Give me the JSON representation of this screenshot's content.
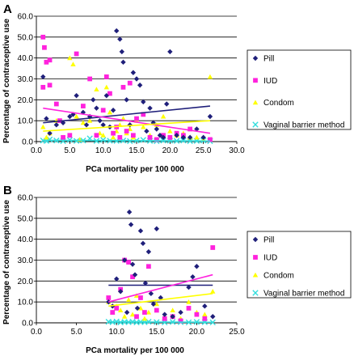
{
  "chart_data": [
    {
      "type": "scatter",
      "panel_label": "A",
      "xlabel": "PCa mortality per 100 000",
      "ylabel": "Percentage of contraceptive use",
      "xlim": [
        0,
        30
      ],
      "ylim": [
        0,
        60
      ],
      "xticks": [
        "0.0",
        "5.0",
        "10.0",
        "15.0",
        "20.0",
        "25.0",
        "30.0"
      ],
      "yticks": [
        "0.0",
        "10.0",
        "20.0",
        "30.0",
        "40.0",
        "50.0",
        "60.0"
      ],
      "grid": "horizontal",
      "legend_position": "right",
      "series": [
        {
          "name": "Pill",
          "color": "#1f1f7a",
          "marker": "diamond",
          "points": [
            [
              1,
              31
            ],
            [
              1.5,
              11
            ],
            [
              2,
              4
            ],
            [
              3,
              8
            ],
            [
              4,
              9
            ],
            [
              5,
              12
            ],
            [
              5.5,
              13
            ],
            [
              6,
              22
            ],
            [
              7,
              14
            ],
            [
              7.5,
              8
            ],
            [
              8,
              12
            ],
            [
              8.5,
              20
            ],
            [
              9,
              16
            ],
            [
              9.5,
              10
            ],
            [
              10,
              8
            ],
            [
              10.5,
              22
            ],
            [
              11,
              7
            ],
            [
              11.5,
              15
            ],
            [
              12,
              53
            ],
            [
              12.5,
              49
            ],
            [
              12.8,
              43
            ],
            [
              13,
              38
            ],
            [
              13.5,
              20
            ],
            [
              14,
              8
            ],
            [
              14.5,
              33
            ],
            [
              15,
              30
            ],
            [
              15.5,
              27
            ],
            [
              16,
              19
            ],
            [
              16.5,
              5
            ],
            [
              17,
              16
            ],
            [
              17.5,
              9
            ],
            [
              18,
              6
            ],
            [
              18.5,
              3
            ],
            [
              19,
              2
            ],
            [
              19.5,
              18
            ],
            [
              20,
              43
            ],
            [
              21,
              3
            ],
            [
              22,
              2
            ],
            [
              23,
              2
            ],
            [
              24,
              6
            ],
            [
              25,
              2
            ],
            [
              26,
              12
            ]
          ],
          "trend": [
            [
              1,
              9
            ],
            [
              26,
              17
            ]
          ]
        },
        {
          "name": "IUD",
          "color": "#ff22dd",
          "marker": "square",
          "points": [
            [
              1,
              50
            ],
            [
              1.2,
              45
            ],
            [
              1.5,
              38
            ],
            [
              2,
              39
            ],
            [
              1,
              26
            ],
            [
              2,
              27
            ],
            [
              3,
              18
            ],
            [
              3.5,
              10
            ],
            [
              4,
              2
            ],
            [
              5,
              3
            ],
            [
              6,
              42
            ],
            [
              7,
              17
            ],
            [
              8,
              30
            ],
            [
              9,
              3
            ],
            [
              10,
              15
            ],
            [
              10.5,
              31
            ],
            [
              11,
              23
            ],
            [
              11.5,
              4
            ],
            [
              12,
              7
            ],
            [
              12.5,
              2
            ],
            [
              13,
              26
            ],
            [
              13.5,
              5
            ],
            [
              14,
              28
            ],
            [
              14.5,
              3
            ],
            [
              15,
              11
            ],
            [
              16,
              13
            ],
            [
              17,
              2
            ],
            [
              18,
              1
            ],
            [
              19,
              3
            ],
            [
              20,
              2
            ],
            [
              21,
              4
            ],
            [
              22,
              3
            ],
            [
              23,
              6
            ],
            [
              26,
              1
            ]
          ],
          "trend": [
            [
              1,
              16
            ],
            [
              26,
              4
            ]
          ]
        },
        {
          "name": "Condom",
          "color": "#ffff00",
          "marker": "triangle",
          "points": [
            [
              1,
              7
            ],
            [
              1.5,
              2
            ],
            [
              2,
              4
            ],
            [
              3,
              10
            ],
            [
              4,
              2
            ],
            [
              5,
              40
            ],
            [
              5.5,
              37
            ],
            [
              6,
              12
            ],
            [
              6.5,
              1
            ],
            [
              7,
              9
            ],
            [
              8,
              10
            ],
            [
              9,
              25
            ],
            [
              9.5,
              4
            ],
            [
              10,
              3
            ],
            [
              10.5,
              26
            ],
            [
              11,
              14
            ],
            [
              11.5,
              2
            ],
            [
              12,
              5
            ],
            [
              12.5,
              8
            ],
            [
              13,
              11
            ],
            [
              13.5,
              4
            ],
            [
              14,
              6
            ],
            [
              14.5,
              2
            ],
            [
              15,
              10
            ],
            [
              16,
              7
            ],
            [
              17,
              3
            ],
            [
              18,
              8
            ],
            [
              19,
              12
            ],
            [
              20,
              5
            ],
            [
              21,
              3
            ],
            [
              22,
              4
            ],
            [
              23,
              2
            ],
            [
              24,
              2
            ],
            [
              25,
              1
            ],
            [
              26,
              31
            ]
          ],
          "trend": [
            [
              1,
              5
            ],
            [
              26,
              10
            ]
          ]
        },
        {
          "name": "Vaginal barrier method",
          "color": "#33dddd",
          "marker": "x",
          "points": [
            [
              1,
              0.5
            ],
            [
              1.5,
              0.3
            ],
            [
              2,
              1
            ],
            [
              3,
              0.5
            ],
            [
              4,
              0.2
            ],
            [
              5,
              0.8
            ],
            [
              6,
              0.3
            ],
            [
              7,
              0.5
            ],
            [
              8,
              1.5
            ],
            [
              9,
              0.3
            ],
            [
              10,
              0.8
            ],
            [
              11,
              0.4
            ],
            [
              12,
              0.3
            ],
            [
              13,
              0.5
            ],
            [
              14,
              0.2
            ],
            [
              15,
              0.5
            ],
            [
              16,
              0.8
            ],
            [
              17,
              0.3
            ],
            [
              18,
              0.2
            ],
            [
              19,
              0.5
            ],
            [
              20,
              0.4
            ],
            [
              21,
              0.3
            ],
            [
              22,
              0.5
            ],
            [
              23,
              0.2
            ],
            [
              24,
              0.3
            ],
            [
              25,
              0.5
            ],
            [
              26,
              0.2
            ]
          ],
          "trend": [
            [
              1,
              0.6
            ],
            [
              26,
              0.3
            ]
          ]
        }
      ]
    },
    {
      "type": "scatter",
      "panel_label": "B",
      "xlabel": "PCa mortality per 100 000",
      "ylabel": "Percentage of contraceptive use",
      "xlim": [
        0,
        25
      ],
      "ylim": [
        0,
        60
      ],
      "xticks": [
        "0.0",
        "5.0",
        "10.0",
        "15.0",
        "20.0",
        "25.0"
      ],
      "yticks": [
        "0.0",
        "10.0",
        "20.0",
        "30.0",
        "40.0",
        "50.0",
        "60.0"
      ],
      "grid": "horizontal",
      "legend_position": "right",
      "series": [
        {
          "name": "Pill",
          "color": "#1f1f7a",
          "marker": "diamond",
          "points": [
            [
              9,
              10
            ],
            [
              9.5,
              8
            ],
            [
              10,
              21
            ],
            [
              10.5,
              15
            ],
            [
              11,
              30
            ],
            [
              11.3,
              5
            ],
            [
              11.6,
              53
            ],
            [
              11.8,
              47
            ],
            [
              12,
              28
            ],
            [
              12.3,
              23
            ],
            [
              12.6,
              7
            ],
            [
              13,
              44
            ],
            [
              13.3,
              38
            ],
            [
              13.6,
              19
            ],
            [
              14,
              34
            ],
            [
              14.3,
              14
            ],
            [
              14.6,
              9
            ],
            [
              15,
              45
            ],
            [
              15.5,
              12
            ],
            [
              16,
              4
            ],
            [
              17,
              3
            ],
            [
              18,
              5
            ],
            [
              19,
              17
            ],
            [
              19.5,
              22
            ],
            [
              20,
              27
            ],
            [
              21,
              8
            ],
            [
              22,
              3
            ]
          ],
          "trend": [
            [
              9,
              18
            ],
            [
              22,
              18
            ]
          ]
        },
        {
          "name": "IUD",
          "color": "#ff22dd",
          "marker": "square",
          "points": [
            [
              9,
              12
            ],
            [
              9.5,
              5
            ],
            [
              10,
              7
            ],
            [
              10.5,
              16
            ],
            [
              11,
              30
            ],
            [
              11.5,
              29
            ],
            [
              12,
              22
            ],
            [
              12.5,
              3
            ],
            [
              13,
              12
            ],
            [
              13.5,
              5
            ],
            [
              14,
              27
            ],
            [
              15,
              6
            ],
            [
              16,
              2
            ],
            [
              17,
              3
            ],
            [
              18,
              1
            ],
            [
              19,
              7
            ],
            [
              20,
              4
            ],
            [
              21,
              2
            ],
            [
              22,
              36
            ]
          ],
          "trend": [
            [
              9,
              10
            ],
            [
              22,
              23
            ]
          ]
        },
        {
          "name": "Condom",
          "color": "#ffff00",
          "marker": "triangle",
          "points": [
            [
              9,
              10
            ],
            [
              9.5,
              5
            ],
            [
              10,
              8
            ],
            [
              10.5,
              6
            ],
            [
              11,
              3
            ],
            [
              11.5,
              11
            ],
            [
              12,
              4
            ],
            [
              12.5,
              13
            ],
            [
              13,
              7
            ],
            [
              13.5,
              2
            ],
            [
              14,
              5
            ],
            [
              15,
              9
            ],
            [
              16,
              3
            ],
            [
              17,
              6
            ],
            [
              18,
              2
            ],
            [
              19,
              10
            ],
            [
              20,
              5
            ],
            [
              21,
              4
            ],
            [
              22,
              15
            ]
          ],
          "trend": [
            [
              9,
              8
            ],
            [
              22,
              14
            ]
          ]
        },
        {
          "name": "Vaginal barrier method",
          "color": "#33dddd",
          "marker": "x",
          "points": [
            [
              9,
              0.5
            ],
            [
              9.5,
              0.3
            ],
            [
              10,
              0.6
            ],
            [
              10.5,
              0.2
            ],
            [
              11,
              0.4
            ],
            [
              11.5,
              0.3
            ],
            [
              12,
              0.5
            ],
            [
              12.5,
              0.2
            ],
            [
              13,
              0.4
            ],
            [
              13.5,
              0.3
            ],
            [
              14,
              0.5
            ],
            [
              15,
              0.3
            ],
            [
              16,
              0.2
            ],
            [
              17,
              0.4
            ],
            [
              18,
              0.3
            ],
            [
              19,
              0.2
            ],
            [
              20,
              0.4
            ],
            [
              21,
              0.3
            ],
            [
              22,
              0.2
            ]
          ],
          "trend": [
            [
              9,
              0.4
            ],
            [
              22,
              0.3
            ]
          ]
        }
      ]
    }
  ]
}
